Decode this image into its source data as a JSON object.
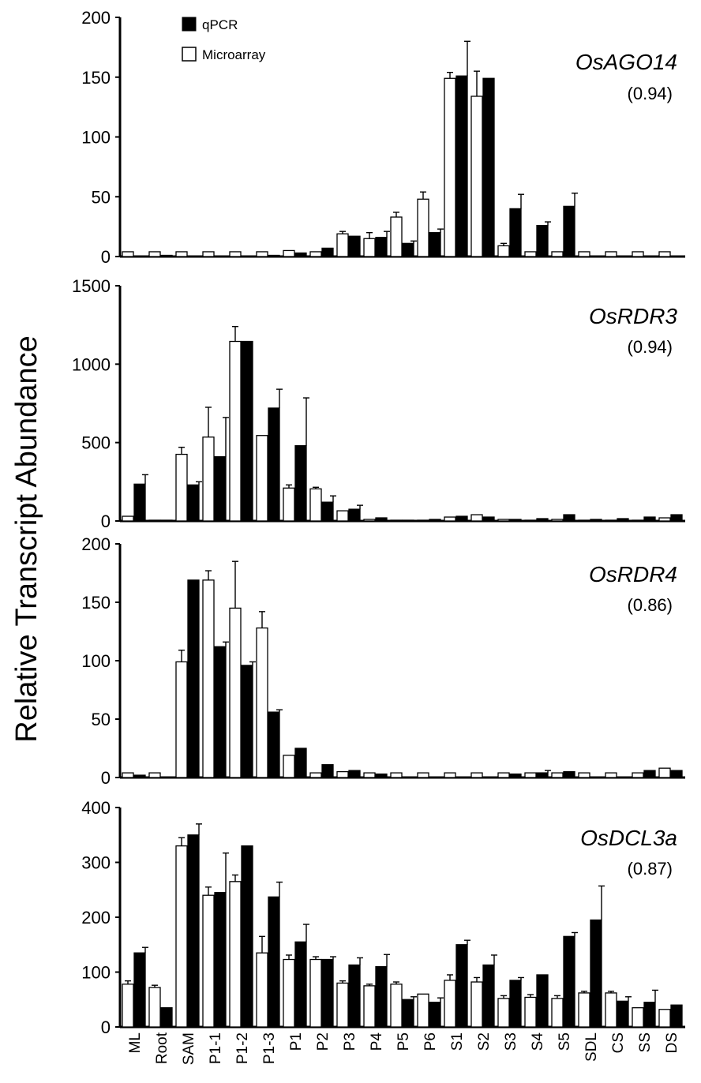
{
  "figure": {
    "ylabel": "Relative Transcript Abundance",
    "legend": {
      "qpcr": "qPCR",
      "microarray": "Microarray",
      "placement": "top-left"
    },
    "colors": {
      "qpcr": "#000000",
      "microarray": "#ffffff",
      "axis": "#000000"
    }
  },
  "chart_data": [
    {
      "type": "bar",
      "gene": "OsAGO14",
      "correlation": "(0.94)",
      "categories": [
        "ML",
        "Root",
        "SAM",
        "P1-1",
        "P1-2",
        "P1-3",
        "P1",
        "P2",
        "P3",
        "P4",
        "P5",
        "P6",
        "S1",
        "S2",
        "S3",
        "S4",
        "S5",
        "SDL",
        "CS",
        "SS",
        "DS"
      ],
      "ylim": [
        0,
        200
      ],
      "yticks": [
        "0",
        "50",
        "100",
        "150",
        "200"
      ],
      "series": [
        {
          "name": "Microarray",
          "values": [
            4,
            4,
            4,
            4,
            4,
            4,
            5,
            4,
            19,
            15,
            33,
            48,
            149,
            134,
            9,
            4,
            4,
            4,
            4,
            4,
            4
          ],
          "errors": [
            0,
            0,
            0,
            0,
            0,
            0,
            0,
            0,
            2,
            5,
            4,
            6,
            5,
            21,
            2,
            0,
            0,
            0,
            0,
            0,
            0
          ]
        },
        {
          "name": "qPCR",
          "values": [
            0,
            1,
            0,
            0,
            0,
            1,
            3,
            7,
            17,
            16,
            11,
            20,
            151,
            149,
            40,
            26,
            42,
            0,
            0,
            0,
            0
          ],
          "errors": [
            0,
            0,
            0,
            0,
            0,
            0,
            0,
            0,
            0,
            5,
            2,
            3,
            29,
            0,
            12,
            3,
            11,
            0,
            0,
            0,
            0
          ]
        }
      ]
    },
    {
      "type": "bar",
      "gene": "OsRDR3",
      "correlation": "(0.94)",
      "categories": [
        "ML",
        "Root",
        "SAM",
        "P1-1",
        "P1-2",
        "P1-3",
        "P1",
        "P2",
        "P3",
        "P4",
        "P5",
        "P6",
        "S1",
        "S2",
        "S3",
        "S4",
        "S5",
        "SDL",
        "CS",
        "SS",
        "DS"
      ],
      "ylim": [
        0,
        1500
      ],
      "yticks": [
        "0",
        "500",
        "1000",
        "1500"
      ],
      "series": [
        {
          "name": "Microarray",
          "values": [
            30,
            5,
            425,
            535,
            1145,
            545,
            210,
            205,
            65,
            10,
            5,
            5,
            25,
            40,
            10,
            5,
            10,
            5,
            5,
            5,
            20
          ],
          "errors": [
            0,
            0,
            45,
            190,
            95,
            0,
            20,
            10,
            0,
            0,
            0,
            0,
            0,
            0,
            0,
            0,
            0,
            0,
            0,
            0,
            0
          ]
        },
        {
          "name": "qPCR",
          "values": [
            235,
            5,
            230,
            410,
            1145,
            720,
            480,
            120,
            75,
            20,
            5,
            10,
            30,
            25,
            10,
            15,
            40,
            10,
            15,
            25,
            40
          ],
          "errors": [
            60,
            0,
            20,
            250,
            0,
            120,
            305,
            40,
            25,
            0,
            0,
            0,
            0,
            0,
            0,
            0,
            0,
            0,
            0,
            0,
            0
          ]
        }
      ]
    },
    {
      "type": "bar",
      "gene": "OsRDR4",
      "correlation": "(0.86)",
      "categories": [
        "ML",
        "Root",
        "SAM",
        "P1-1",
        "P1-2",
        "P1-3",
        "P1",
        "P2",
        "P3",
        "P4",
        "P5",
        "P6",
        "S1",
        "S2",
        "S3",
        "S4",
        "S5",
        "SDL",
        "CS",
        "SS",
        "DS"
      ],
      "ylim": [
        0,
        200
      ],
      "yticks": [
        "0",
        "50",
        "100",
        "150",
        "200"
      ],
      "series": [
        {
          "name": "Microarray",
          "values": [
            4,
            4,
            99,
            169,
            145,
            128,
            19,
            4,
            5,
            4,
            4,
            4,
            4,
            4,
            4,
            4,
            4,
            4,
            4,
            4,
            8
          ],
          "errors": [
            0,
            0,
            10,
            8,
            40,
            14,
            0,
            0,
            0,
            0,
            0,
            0,
            0,
            0,
            0,
            0,
            0,
            0,
            0,
            0,
            0
          ]
        },
        {
          "name": "qPCR",
          "values": [
            2,
            0,
            169,
            112,
            96,
            56,
            25,
            11,
            6,
            3,
            0,
            0,
            0,
            0,
            3,
            4,
            5,
            0,
            0,
            6,
            6
          ],
          "errors": [
            0,
            0,
            0,
            4,
            3,
            2,
            0,
            0,
            0,
            0,
            0,
            0,
            0,
            0,
            0,
            2,
            0,
            0,
            0,
            0,
            0
          ]
        }
      ]
    },
    {
      "type": "bar",
      "gene": "OsDCL3a",
      "correlation": "(0.87)",
      "categories": [
        "ML",
        "Root",
        "SAM",
        "P1-1",
        "P1-2",
        "P1-3",
        "P1",
        "P2",
        "P3",
        "P4",
        "P5",
        "P6",
        "S1",
        "S2",
        "S3",
        "S4",
        "S5",
        "SDL",
        "CS",
        "SS",
        "DS"
      ],
      "ylim": [
        0,
        400
      ],
      "yticks": [
        "0",
        "100",
        "200",
        "300",
        "400"
      ],
      "series": [
        {
          "name": "Microarray",
          "values": [
            78,
            72,
            330,
            240,
            265,
            135,
            123,
            123,
            80,
            75,
            78,
            60,
            85,
            82,
            52,
            54,
            52,
            62,
            62,
            35,
            32
          ],
          "errors": [
            6,
            4,
            15,
            15,
            12,
            30,
            8,
            5,
            4,
            3,
            4,
            0,
            10,
            8,
            5,
            5,
            5,
            3,
            3,
            0,
            0
          ]
        },
        {
          "name": "qPCR",
          "values": [
            135,
            35,
            350,
            245,
            330,
            237,
            155,
            123,
            113,
            110,
            50,
            45,
            150,
            113,
            85,
            95,
            165,
            195,
            47,
            45,
            40
          ],
          "errors": [
            10,
            0,
            20,
            72,
            0,
            27,
            32,
            5,
            13,
            22,
            5,
            8,
            8,
            18,
            5,
            0,
            7,
            62,
            8,
            22,
            0
          ]
        }
      ]
    }
  ]
}
